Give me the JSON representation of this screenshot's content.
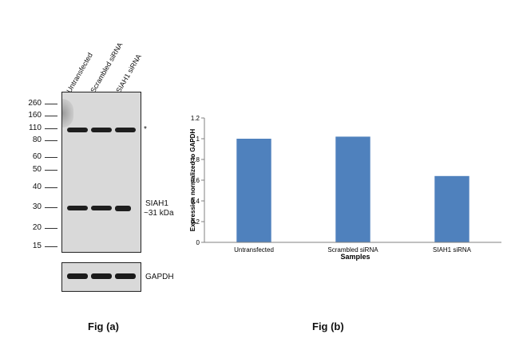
{
  "fig_a": {
    "caption": "Fig (a)",
    "lanes": [
      "Untransfected",
      "Scrambled siRNA",
      "SIAH1 siRNA"
    ],
    "markers": [
      "260",
      "160",
      "110",
      "80",
      "60",
      "50",
      "40",
      "30",
      "20",
      "15"
    ],
    "nonspecific_mark": "*",
    "target_label_line1": "SIAH1",
    "target_label_line2": "~31 kDa",
    "loading_control_label": "GAPDH"
  },
  "fig_b": {
    "caption": "Fig (b)"
  },
  "chart_data": {
    "type": "bar",
    "categories": [
      "Untransfected",
      "Scrambled siRNA",
      "SIAH1 siRNA"
    ],
    "values": [
      1.0,
      1.02,
      0.64
    ],
    "xlabel": "Samples",
    "ylabel": "Expression  normalized to GAPDH",
    "ylim": [
      0,
      1.2
    ],
    "yticks": [
      "0",
      "0.2",
      "0.4",
      "0.6",
      "0.8",
      "1",
      "1.2"
    ],
    "bar_color": "#4f81bd",
    "grid": false,
    "legend": "none"
  }
}
